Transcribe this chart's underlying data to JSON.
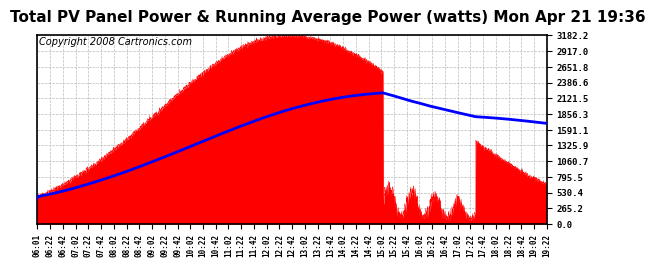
{
  "title": "Total PV Panel Power & Running Average Power (watts) Mon Apr 21 19:36",
  "copyright": "Copyright 2008 Cartronics.com",
  "yticks": [
    0.0,
    265.2,
    530.4,
    795.5,
    1060.7,
    1325.9,
    1591.1,
    1856.3,
    2121.5,
    2386.6,
    2651.8,
    2917.0,
    3182.2
  ],
  "ymax": 3182.2,
  "ymin": 0.0,
  "xtick_labels": [
    "06:01",
    "06:22",
    "06:42",
    "07:02",
    "07:22",
    "07:42",
    "08:02",
    "08:22",
    "08:42",
    "09:02",
    "09:22",
    "09:42",
    "10:02",
    "10:22",
    "10:42",
    "11:02",
    "11:22",
    "11:42",
    "12:02",
    "12:22",
    "12:42",
    "13:02",
    "13:22",
    "13:42",
    "14:02",
    "14:22",
    "14:42",
    "15:02",
    "15:22",
    "15:42",
    "16:02",
    "16:22",
    "16:42",
    "17:02",
    "17:22",
    "17:42",
    "18:02",
    "18:22",
    "18:42",
    "19:02",
    "19:22"
  ],
  "fill_color": "#FF0000",
  "line_color": "#0000FF",
  "background_color": "#FFFFFF",
  "grid_color": "#BBBBBB",
  "title_fontsize": 11,
  "copyright_fontsize": 7
}
